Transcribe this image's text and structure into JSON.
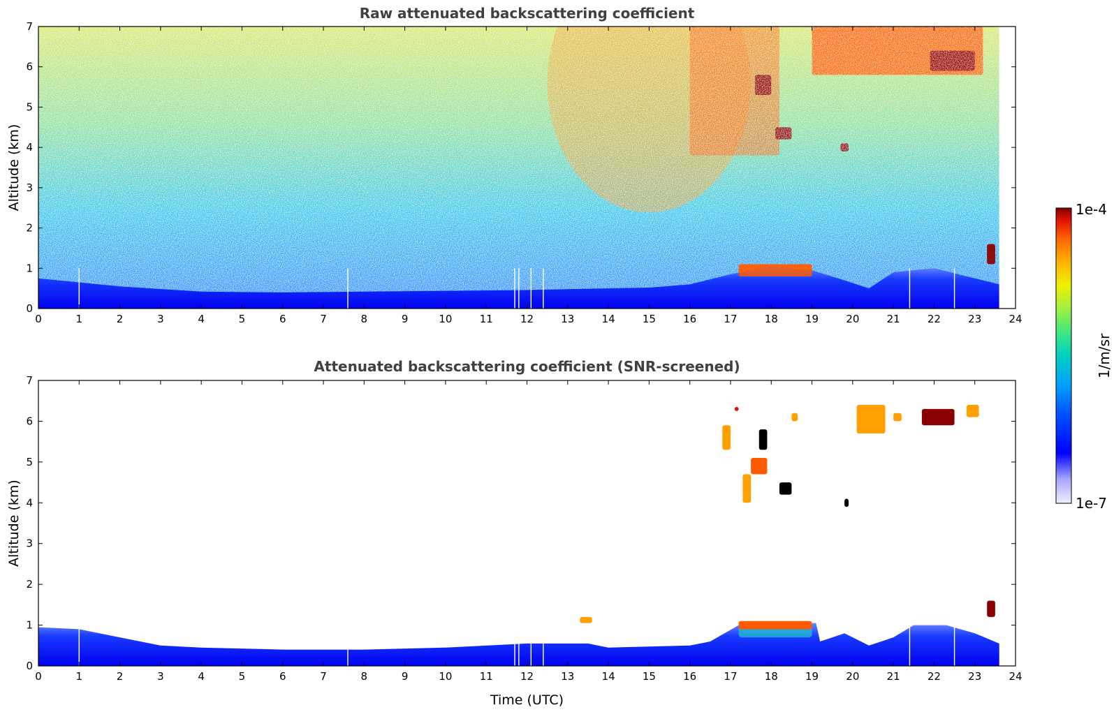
{
  "chart_data": [
    {
      "type": "heatmap",
      "title": "Raw attenuated backscattering coefficient",
      "xlabel": "",
      "ylabel": "Altitude (km)",
      "xlim": [
        0,
        24
      ],
      "ylim": [
        0,
        7
      ],
      "xticks": [
        0,
        1,
        2,
        3,
        4,
        5,
        6,
        7,
        8,
        9,
        10,
        11,
        12,
        13,
        14,
        15,
        16,
        17,
        18,
        19,
        20,
        21,
        22,
        23,
        24
      ],
      "yticks": [
        0,
        1,
        2,
        3,
        4,
        5,
        6,
        7
      ],
      "data_end_hour": 23.6,
      "boundary_layer_top_km": [
        {
          "hour": 0,
          "km": 0.75
        },
        {
          "hour": 2,
          "km": 0.55
        },
        {
          "hour": 4,
          "km": 0.42
        },
        {
          "hour": 6,
          "km": 0.4
        },
        {
          "hour": 8,
          "km": 0.42
        },
        {
          "hour": 10,
          "km": 0.44
        },
        {
          "hour": 12,
          "km": 0.46
        },
        {
          "hour": 14,
          "km": 0.5
        },
        {
          "hour": 15,
          "km": 0.52
        },
        {
          "hour": 16,
          "km": 0.6
        },
        {
          "hour": 17,
          "km": 0.85
        },
        {
          "hour": 18,
          "km": 1.05
        },
        {
          "hour": 19,
          "km": 0.95
        },
        {
          "hour": 19.8,
          "km": 0.7
        },
        {
          "hour": 20.4,
          "km": 0.5
        },
        {
          "hour": 21,
          "km": 0.9
        },
        {
          "hour": 22,
          "km": 1.0
        },
        {
          "hour": 23,
          "km": 0.75
        },
        {
          "hour": 23.6,
          "km": 0.6
        }
      ],
      "cloud_features": [
        {
          "hour_start": 16.0,
          "hour_end": 18.2,
          "km_low": 3.8,
          "km_high": 7.0,
          "level": "orange-red",
          "note": "fall streaks"
        },
        {
          "hour_start": 17.6,
          "hour_end": 18.0,
          "km_low": 5.3,
          "km_high": 5.8,
          "level": "dark-red"
        },
        {
          "hour_start": 18.1,
          "hour_end": 18.5,
          "km_low": 4.2,
          "km_high": 4.5,
          "level": "dark-red"
        },
        {
          "hour_start": 19.7,
          "hour_end": 19.9,
          "km_low": 3.9,
          "km_high": 4.1,
          "level": "dark-red"
        },
        {
          "hour_start": 19.0,
          "hour_end": 23.2,
          "km_low": 5.8,
          "km_high": 7.0,
          "level": "orange-red"
        },
        {
          "hour_start": 21.9,
          "hour_end": 23.0,
          "km_low": 5.9,
          "km_high": 6.4,
          "level": "dark-red"
        },
        {
          "hour_start": 17.2,
          "hour_end": 19.0,
          "km_low": 0.8,
          "km_high": 1.1,
          "level": "orange-red"
        },
        {
          "hour_start": 23.3,
          "hour_end": 23.5,
          "km_low": 1.1,
          "km_high": 1.6,
          "level": "dark-red"
        }
      ],
      "missing_profiles_hour": [
        1.0,
        7.6,
        11.7,
        11.8,
        12.1,
        12.4,
        21.4,
        22.5
      ]
    },
    {
      "type": "heatmap",
      "title": "Attenuated backscattering coefficient (SNR-screened)",
      "xlabel": "Time (UTC)",
      "ylabel": "Altitude (km)",
      "xlim": [
        0,
        24
      ],
      "ylim": [
        0,
        7
      ],
      "xticks": [
        0,
        1,
        2,
        3,
        4,
        5,
        6,
        7,
        8,
        9,
        10,
        11,
        12,
        13,
        14,
        15,
        16,
        17,
        18,
        19,
        20,
        21,
        22,
        23,
        24
      ],
      "yticks": [
        0,
        1,
        2,
        3,
        4,
        5,
        6,
        7
      ],
      "screened_layer_top_km": [
        {
          "hour": 0,
          "km": 0.95
        },
        {
          "hour": 1,
          "km": 0.9
        },
        {
          "hour": 2,
          "km": 0.7
        },
        {
          "hour": 3,
          "km": 0.5
        },
        {
          "hour": 4,
          "km": 0.45
        },
        {
          "hour": 6,
          "km": 0.4
        },
        {
          "hour": 8,
          "km": 0.4
        },
        {
          "hour": 10,
          "km": 0.45
        },
        {
          "hour": 12,
          "km": 0.55
        },
        {
          "hour": 13.5,
          "km": 0.55
        },
        {
          "hour": 14,
          "km": 0.45
        },
        {
          "hour": 16,
          "km": 0.5
        },
        {
          "hour": 16.5,
          "km": 0.6
        },
        {
          "hour": 17.2,
          "km": 1.0
        },
        {
          "hour": 19.1,
          "km": 1.05
        },
        {
          "hour": 19.2,
          "km": 0.6
        },
        {
          "hour": 19.8,
          "km": 0.8
        },
        {
          "hour": 20.4,
          "km": 0.5
        },
        {
          "hour": 21,
          "km": 0.7
        },
        {
          "hour": 21.5,
          "km": 1.0
        },
        {
          "hour": 22.3,
          "km": 1.0
        },
        {
          "hour": 23,
          "km": 0.8
        },
        {
          "hour": 23.6,
          "km": 0.55
        }
      ],
      "cloud_features": [
        {
          "hour_start": 16.8,
          "hour_end": 17.0,
          "km_low": 5.3,
          "km_high": 5.9,
          "level": "orange"
        },
        {
          "hour_start": 17.1,
          "hour_end": 17.2,
          "km_low": 6.25,
          "km_high": 6.35,
          "level": "red"
        },
        {
          "hour_start": 17.5,
          "hour_end": 17.9,
          "km_low": 4.7,
          "km_high": 5.1,
          "level": "orange-red"
        },
        {
          "hour_start": 17.3,
          "hour_end": 17.5,
          "km_low": 4.0,
          "km_high": 4.7,
          "level": "orange"
        },
        {
          "hour_start": 17.7,
          "hour_end": 17.9,
          "km_low": 5.3,
          "km_high": 5.8,
          "level": "black"
        },
        {
          "hour_start": 18.2,
          "hour_end": 18.5,
          "km_low": 4.2,
          "km_high": 4.5,
          "level": "black"
        },
        {
          "hour_start": 19.8,
          "hour_end": 19.9,
          "km_low": 3.9,
          "km_high": 4.1,
          "level": "black"
        },
        {
          "hour_start": 20.1,
          "hour_end": 20.8,
          "km_low": 5.7,
          "km_high": 6.4,
          "level": "orange"
        },
        {
          "hour_start": 21.0,
          "hour_end": 21.2,
          "km_low": 6.0,
          "km_high": 6.2,
          "level": "orange"
        },
        {
          "hour_start": 21.7,
          "hour_end": 22.5,
          "km_low": 5.9,
          "km_high": 6.3,
          "level": "dark-red"
        },
        {
          "hour_start": 22.8,
          "hour_end": 23.1,
          "km_low": 6.1,
          "km_high": 6.4,
          "level": "orange"
        },
        {
          "hour_start": 18.5,
          "hour_end": 18.65,
          "km_low": 6.0,
          "km_high": 6.2,
          "level": "orange"
        },
        {
          "hour_start": 17.2,
          "hour_end": 19.0,
          "km_low": 0.9,
          "km_high": 1.1,
          "level": "orange-red"
        },
        {
          "hour_start": 23.3,
          "hour_end": 23.5,
          "km_low": 1.2,
          "km_high": 1.6,
          "level": "dark-red"
        },
        {
          "hour_start": 13.3,
          "hour_end": 13.6,
          "km_low": 1.05,
          "km_high": 1.2,
          "level": "orange"
        }
      ],
      "missing_profiles_hour": [
        1.0,
        7.6,
        11.7,
        11.8,
        12.1,
        12.4,
        21.4,
        22.5
      ]
    }
  ],
  "colorbar": {
    "label": "1/m/sr",
    "max_label": "1e-4",
    "min_label": "1e-7",
    "scale": "log",
    "range": [
      1e-07,
      0.0001
    ],
    "colormap": [
      "#f0f0ff",
      "#a8a8ff",
      "#0000ff",
      "#0050ff",
      "#00a0ff",
      "#00d0c0",
      "#40e880",
      "#a0f040",
      "#f0f000",
      "#ffb000",
      "#ff6000",
      "#e01000",
      "#800000"
    ]
  }
}
